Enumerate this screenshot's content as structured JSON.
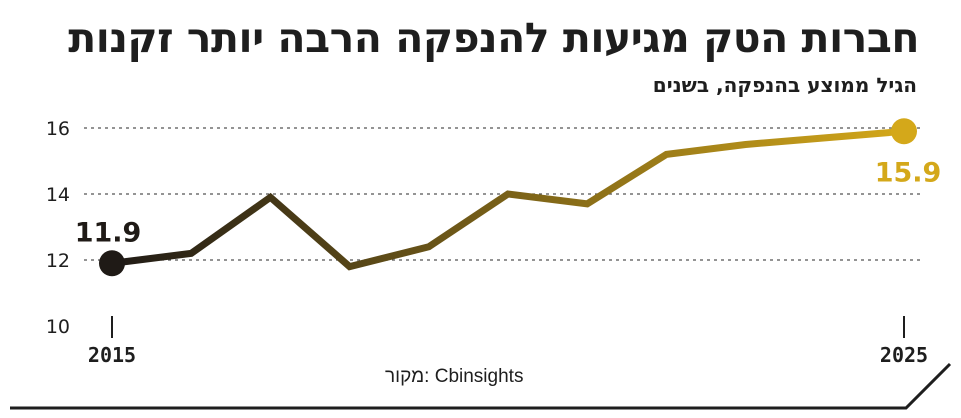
{
  "title": "חברות הטק מגיעות להנפקה הרבה יותר זקנות",
  "subtitle": "הגיל ממוצע בהנפקה, בשנים",
  "source": "מקור: Cbinsights",
  "colors": {
    "start": "#1f1a16",
    "end": "#d4a81a",
    "text": "#1e1e1e",
    "grid": "#555555"
  },
  "chart_data": {
    "type": "line",
    "x": [
      2015,
      2016,
      2017,
      2018,
      2019,
      2020,
      2021,
      2022,
      2023,
      2024,
      2025
    ],
    "series": [
      {
        "values": [
          11.9,
          12.2,
          13.9,
          11.8,
          12.4,
          14.0,
          13.7,
          15.2,
          15.5,
          15.7,
          15.9
        ]
      }
    ],
    "yticks": [
      10,
      12,
      14,
      16
    ],
    "xticks": [
      "2015",
      "2025"
    ],
    "ylim": [
      10,
      16
    ],
    "grid": "horizontal-dashed",
    "annotations": [
      {
        "index": 0,
        "label": "11.9"
      },
      {
        "index": 10,
        "label": "15.9"
      }
    ]
  }
}
